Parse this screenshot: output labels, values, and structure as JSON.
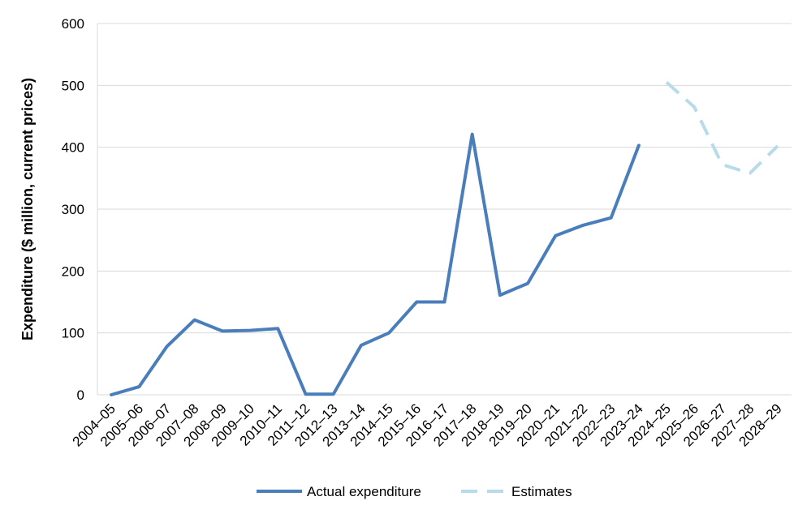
{
  "chart_data": {
    "type": "line",
    "ylabel": "Expenditure ($ million, current prices)",
    "ylim": [
      0,
      600
    ],
    "yticks": [
      0,
      100,
      200,
      300,
      400,
      500,
      600
    ],
    "grid": "horizontal",
    "legend_position": "bottom",
    "categories": [
      "2004–05",
      "2005–06",
      "2006–07",
      "2007–08",
      "2008–09",
      "2009–10",
      "2010–11",
      "2011–12",
      "2012–13",
      "2013–14",
      "2014–15",
      "2015–16",
      "2016–17",
      "2017–18",
      "2018–19",
      "2019–20",
      "2020–21",
      "2021–22",
      "2022–23",
      "2023–24",
      "2024–25",
      "2025–26",
      "2026–27",
      "2027–28",
      "2028–29"
    ],
    "series": [
      {
        "name": "Actual expenditure",
        "color": "#4a7ebb",
        "style": "solid",
        "values": [
          0,
          13,
          78,
          121,
          103,
          104,
          107,
          1,
          1,
          80,
          100,
          150,
          150,
          421,
          161,
          180,
          257,
          274,
          286,
          403,
          null,
          null,
          null,
          null,
          null
        ]
      },
      {
        "name": "Estimates",
        "color": "#b7dbeb",
        "style": "dashed",
        "values": [
          null,
          null,
          null,
          null,
          null,
          null,
          null,
          null,
          null,
          null,
          null,
          null,
          null,
          null,
          null,
          null,
          null,
          null,
          null,
          null,
          505,
          465,
          372,
          358,
          402
        ]
      }
    ]
  }
}
